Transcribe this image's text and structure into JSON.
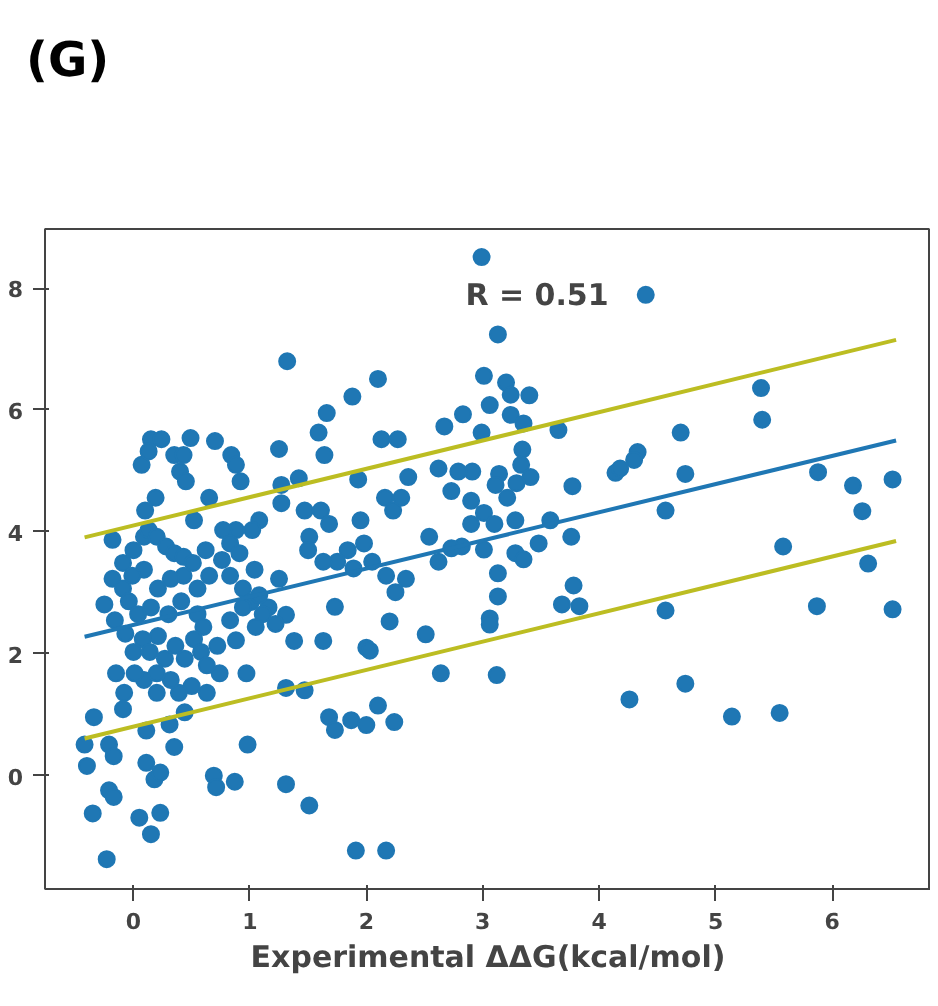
{
  "chart_data": {
    "type": "scatter",
    "title": "(G)",
    "xlabel": "Experimental ΔΔG(kcal/mol)",
    "annotations": [
      "R = 0.51"
    ],
    "xlim": [
      -0.76,
      6.85
    ],
    "ylim": [
      -1.86,
      8.97
    ],
    "xticks": [
      0,
      1,
      2,
      3,
      4,
      5,
      6
    ],
    "yticks": [
      0,
      2,
      4,
      6,
      8
    ],
    "grid": false,
    "marker": "circle",
    "series": [
      {
        "color": "#1f77b4",
        "x": [
          4.4,
          3.13,
          2.99,
          5.39,
          5.4,
          3.65,
          4.7,
          4.33,
          4.3,
          4.14,
          4.18,
          4.74,
          5.88,
          6.18,
          6.52,
          6.26,
          4.57,
          3.77,
          3.76,
          3.58,
          5.58,
          6.31,
          3.78,
          3.68,
          3.83,
          4.57,
          5.87,
          6.52,
          3.12,
          4.26,
          4.74,
          5.14,
          5.55,
          3.01,
          3.2,
          3.24,
          3.4,
          3.06,
          3.24,
          3.35,
          2.99,
          3.34,
          3.33,
          2.91,
          3.14,
          3.41,
          3.11,
          3.29,
          3.21,
          2.9,
          3.01,
          3.28,
          3.1,
          2.9,
          2.82,
          3.01,
          3.28,
          3.35,
          3.48,
          3.13,
          3.13,
          3.06,
          3.06,
          1.32,
          1.88,
          2.1,
          1.66,
          1.59,
          1.64,
          0.15,
          0.24,
          0.49,
          0.7,
          0.07,
          0.13,
          0.35,
          0.84,
          0.88,
          0.92,
          1.25,
          2.13,
          2.27,
          0.43,
          0.4,
          0.45,
          0.19,
          0.1,
          0.65,
          0.52,
          1.27,
          1.27,
          1.42,
          1.47,
          1.51,
          1.61,
          1.68,
          1.93,
          1.95,
          2.16,
          2.23,
          2.3,
          2.36,
          2.67,
          2.83,
          2.62,
          2.79,
          2.73,
          2.54,
          2.62,
          2.73,
          2.51,
          2.64,
          2.2,
          2.0,
          2.03,
          1.98,
          1.84,
          1.75,
          2.05,
          2.17,
          2.34,
          2.25,
          1.89,
          1.63,
          1.5,
          1.73,
          1.63,
          1.31,
          1.38,
          1.25,
          1.16,
          1.01,
          1.08,
          1.04,
          1.08,
          1.02,
          0.88,
          0.77,
          0.83,
          0.91,
          0.76,
          0.83,
          0.94,
          1.31,
          1.47,
          1.68,
          1.73,
          1.87,
          2.0,
          2.1,
          2.24,
          1.31,
          1.51,
          1.91,
          2.17,
          0.97,
          0.98,
          0.74,
          0.63,
          0.69,
          0.71,
          0.87,
          0.5,
          0.39,
          0.44,
          0.35,
          0.31,
          0.2,
          0.09,
          0.11,
          0.11,
          0.18,
          0.23,
          0.05,
          0.15,
          0.23,
          0.01,
          -0.08,
          -0.15,
          -0.09,
          -0.34,
          -0.42,
          -0.4,
          -0.35,
          -0.23,
          -0.21,
          -0.17,
          -0.21,
          -0.17,
          -0.25,
          -0.18,
          -0.18,
          -0.09,
          0.0,
          0.09,
          0.13,
          0.2,
          0.28,
          0.35,
          0.43,
          0.51,
          0.62,
          0.65,
          0.55,
          0.43,
          0.32,
          0.21,
          0.09,
          -0.01,
          -0.09,
          -0.04,
          0.04,
          0.15,
          0.3,
          0.41,
          0.55,
          0.6,
          0.52,
          0.36,
          0.21,
          0.08,
          -0.07,
          -0.16,
          0.0,
          0.14,
          0.27,
          0.44,
          0.58,
          0.72,
          0.63,
          0.32,
          0.2,
          0.83,
          0.94,
          1.11,
          1.22,
          1.05,
          0.88
        ],
        "values": [
          7.89,
          7.24,
          8.51,
          6.36,
          5.84,
          5.67,
          5.63,
          5.31,
          5.18,
          4.97,
          5.04,
          4.95,
          4.98,
          4.76,
          4.86,
          4.34,
          4.35,
          4.75,
          3.92,
          4.19,
          3.76,
          3.48,
          3.12,
          2.81,
          2.78,
          2.71,
          2.78,
          2.73,
          1.65,
          1.25,
          1.51,
          0.97,
          1.03,
          6.56,
          6.45,
          6.25,
          6.24,
          6.08,
          5.92,
          5.78,
          5.63,
          5.35,
          5.1,
          4.99,
          4.95,
          4.9,
          4.77,
          4.8,
          4.56,
          4.51,
          4.31,
          4.19,
          4.13,
          4.13,
          3.76,
          3.71,
          3.65,
          3.55,
          3.81,
          3.32,
          2.94,
          2.58,
          2.48,
          6.8,
          6.22,
          6.51,
          5.95,
          5.63,
          5.26,
          5.52,
          5.52,
          5.54,
          5.49,
          5.1,
          5.32,
          5.26,
          5.26,
          5.1,
          4.83,
          5.36,
          5.52,
          5.52,
          5.26,
          4.99,
          4.83,
          4.56,
          4.35,
          4.56,
          4.19,
          4.77,
          4.47,
          4.88,
          4.35,
          3.92,
          4.35,
          4.13,
          4.86,
          4.19,
          4.56,
          4.35,
          4.56,
          4.9,
          5.73,
          5.93,
          5.04,
          4.99,
          4.67,
          3.92,
          3.51,
          3.73,
          2.32,
          1.68,
          2.53,
          2.1,
          2.05,
          3.81,
          3.7,
          3.51,
          3.51,
          3.28,
          3.23,
          3.01,
          3.4,
          3.51,
          3.7,
          2.77,
          2.21,
          2.64,
          2.21,
          3.23,
          2.76,
          2.85,
          2.96,
          3.38,
          4.19,
          4.03,
          4.03,
          4.03,
          3.81,
          3.65,
          3.54,
          3.28,
          3.07,
          1.44,
          1.4,
          0.96,
          0.75,
          0.91,
          0.83,
          1.15,
          0.88,
          -0.14,
          -0.49,
          -1.23,
          -1.23,
          1.68,
          0.51,
          1.68,
          1.36,
          0.0,
          -0.19,
          -0.1,
          1.47,
          1.36,
          1.04,
          0.47,
          0.84,
          1.36,
          1.57,
          0.74,
          0.21,
          -0.06,
          0.05,
          -0.69,
          -0.96,
          -0.61,
          1.68,
          1.36,
          1.68,
          1.09,
          0.96,
          0.51,
          0.16,
          -0.62,
          -1.37,
          0.51,
          0.32,
          -0.24,
          -0.35,
          2.81,
          3.87,
          3.23,
          3.49,
          3.7,
          3.92,
          4.03,
          3.92,
          3.76,
          3.65,
          3.59,
          3.49,
          3.7,
          3.28,
          3.07,
          3.28,
          3.23,
          3.07,
          3.38,
          3.28,
          3.07,
          2.86,
          2.65,
          2.76,
          2.65,
          2.86,
          2.65,
          2.44,
          2.24,
          2.13,
          2.29,
          2.24,
          2.33,
          2.55,
          2.03,
          2.03,
          1.92,
          1.92,
          2.03,
          2.13,
          1.81,
          1.57,
          1.68,
          2.55,
          2.76,
          2.65,
          2.49,
          2.44,
          2.22
        ]
      },
      {
        "type": "line",
        "marker": "none",
        "color": "#1f77b4",
        "x": [
          -0.42,
          6.55
        ],
        "values": [
          2.28,
          5.5
        ]
      },
      {
        "type": "line",
        "marker": "none",
        "color": "#bcbd22",
        "x": [
          -0.42,
          6.55
        ],
        "values": [
          3.91,
          7.15
        ]
      },
      {
        "type": "line",
        "marker": "none",
        "color": "#bcbd22",
        "x": [
          -0.42,
          6.55
        ],
        "values": [
          0.61,
          3.85
        ]
      }
    ]
  }
}
